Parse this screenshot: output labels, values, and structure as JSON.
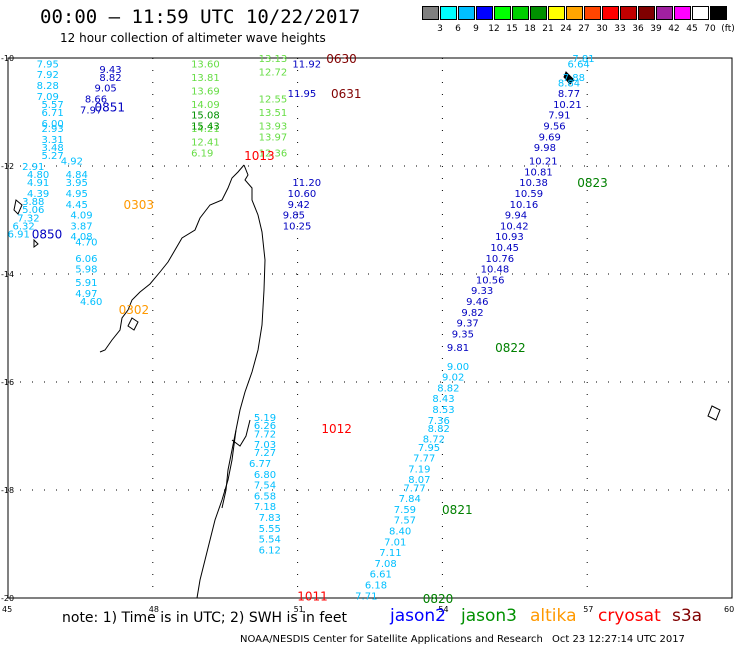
{
  "title": "00:00 – 11:59 UTC 10/22/2017",
  "subtitle": "12 hour collection of altimeter wave heights",
  "colorbar": {
    "colors": [
      "#808080",
      "#00ffff",
      "#00bfff",
      "#0000ff",
      "#00ff00",
      "#00d000",
      "#009000",
      "#ffff00",
      "#ffa500",
      "#ff4500",
      "#ff0000",
      "#c00000",
      "#800000",
      "#a020a0",
      "#ff00ff",
      "#ffffff",
      "#000000"
    ],
    "labels": [
      "3",
      "6",
      "9",
      "12",
      "15",
      "18",
      "21",
      "24",
      "27",
      "30",
      "33",
      "36",
      "39",
      "42",
      "45",
      "70",
      "(ft)"
    ]
  },
  "axes": {
    "lon_ticks": [
      "45",
      "48",
      "51",
      "54",
      "57",
      "60"
    ],
    "lat_ticks": [
      "-10",
      "-12",
      "-14",
      "-16",
      "-18",
      "-20"
    ]
  },
  "tracks": [
    {
      "sat": "jason2",
      "color": "#00bfff",
      "points": [
        {
          "lat": -10.1,
          "lon": 45.8,
          "v": "7.95"
        },
        {
          "lat": -10.3,
          "lon": 45.8,
          "v": "7.92"
        },
        {
          "lat": -10.5,
          "lon": 45.8,
          "v": "8.28"
        },
        {
          "lat": -10.7,
          "lon": 45.8,
          "v": "7.09"
        },
        {
          "lat": -10.85,
          "lon": 45.9,
          "v": "5.57"
        },
        {
          "lat": -11.0,
          "lon": 45.9,
          "v": "6.71"
        },
        {
          "lat": -11.2,
          "lon": 45.9,
          "v": "6.00"
        },
        {
          "lat": -11.3,
          "lon": 45.9,
          "v": "2.93"
        },
        {
          "lat": -11.5,
          "lon": 45.9,
          "v": "3.31"
        },
        {
          "lat": -11.65,
          "lon": 45.9,
          "v": "3.48"
        },
        {
          "lat": -11.8,
          "lon": 45.9,
          "v": "5.27"
        },
        {
          "lat": -11.9,
          "lon": 46.3,
          "v": "4.92"
        },
        {
          "lat": -12.0,
          "lon": 45.5,
          "v": "2.91"
        },
        {
          "lat": -12.15,
          "lon": 45.6,
          "v": "4.80"
        },
        {
          "lat": -12.3,
          "lon": 45.6,
          "v": "4.91"
        },
        {
          "lat": -12.5,
          "lon": 45.6,
          "v": "4.39"
        },
        {
          "lat": -12.65,
          "lon": 45.5,
          "v": "3.88"
        },
        {
          "lat": -12.8,
          "lon": 45.5,
          "v": "5.06"
        },
        {
          "lat": -12.95,
          "lon": 45.4,
          "v": "7.32"
        },
        {
          "lat": -13.1,
          "lon": 45.3,
          "v": "6.32"
        },
        {
          "lat": -13.25,
          "lon": 45.2,
          "v": "6.91"
        },
        {
          "lat": -12.15,
          "lon": 46.4,
          "v": "4.84"
        },
        {
          "lat": -12.3,
          "lon": 46.4,
          "v": "3.95"
        },
        {
          "lat": -12.5,
          "lon": 46.4,
          "v": "4.95"
        },
        {
          "lat": -12.7,
          "lon": 46.4,
          "v": "4.45"
        },
        {
          "lat": -12.9,
          "lon": 46.5,
          "v": "4.09"
        },
        {
          "lat": -13.1,
          "lon": 46.5,
          "v": "3.87"
        },
        {
          "lat": -13.3,
          "lon": 46.5,
          "v": "4.08"
        },
        {
          "lat": -13.4,
          "lon": 46.6,
          "v": "4.70"
        },
        {
          "lat": -13.7,
          "lon": 46.6,
          "v": "6.06"
        },
        {
          "lat": -13.9,
          "lon": 46.6,
          "v": "5.98"
        },
        {
          "lat": -14.15,
          "lon": 46.6,
          "v": "5.91"
        },
        {
          "lat": -14.35,
          "lon": 46.6,
          "v": "4.97"
        },
        {
          "lat": -14.5,
          "lon": 46.7,
          "v": "4.60"
        },
        {
          "lat": -16.65,
          "lon": 50.3,
          "v": "5.19"
        },
        {
          "lat": -16.8,
          "lon": 50.3,
          "v": "6.26"
        },
        {
          "lat": -16.95,
          "lon": 50.3,
          "v": "7.72"
        },
        {
          "lat": -17.15,
          "lon": 50.3,
          "v": "7.03"
        },
        {
          "lat": -17.3,
          "lon": 50.3,
          "v": "7.27"
        },
        {
          "lat": -17.5,
          "lon": 50.2,
          "v": "6.77"
        },
        {
          "lat": -17.7,
          "lon": 50.3,
          "v": "6.80"
        },
        {
          "lat": -17.9,
          "lon": 50.3,
          "v": "7.54"
        },
        {
          "lat": -18.1,
          "lon": 50.3,
          "v": "6.58"
        },
        {
          "lat": -18.3,
          "lon": 50.3,
          "v": "7.18"
        },
        {
          "lat": -18.5,
          "lon": 50.4,
          "v": "7.83"
        },
        {
          "lat": -18.7,
          "lon": 50.4,
          "v": "5.55"
        },
        {
          "lat": -18.9,
          "lon": 50.4,
          "v": "5.54"
        },
        {
          "lat": -19.1,
          "lon": 50.4,
          "v": "6.12"
        },
        {
          "lat": -10.0,
          "lon": 56.9,
          "v": "7.81"
        },
        {
          "lat": -10.1,
          "lon": 56.8,
          "v": "6.64"
        },
        {
          "lat": -10.35,
          "lon": 56.7,
          "v": "7.88"
        },
        {
          "lat": -10.45,
          "lon": 56.6,
          "v": "8.84"
        },
        {
          "lat": -15.7,
          "lon": 54.3,
          "v": "9.00"
        },
        {
          "lat": -15.9,
          "lon": 54.2,
          "v": "9.02"
        },
        {
          "lat": -16.1,
          "lon": 54.1,
          "v": "8.82"
        },
        {
          "lat": -16.3,
          "lon": 54.0,
          "v": "8.43"
        },
        {
          "lat": -16.5,
          "lon": 54.0,
          "v": "8.53"
        },
        {
          "lat": -16.7,
          "lon": 53.9,
          "v": "7.36"
        },
        {
          "lat": -16.85,
          "lon": 53.9,
          "v": "8.82"
        },
        {
          "lat": -17.05,
          "lon": 53.8,
          "v": "8.72"
        },
        {
          "lat": -17.2,
          "lon": 53.7,
          "v": "7.95"
        },
        {
          "lat": -17.4,
          "lon": 53.6,
          "v": "7.77"
        },
        {
          "lat": -17.6,
          "lon": 53.5,
          "v": "7.19"
        },
        {
          "lat": -17.8,
          "lon": 53.5,
          "v": "8.07"
        },
        {
          "lat": -17.95,
          "lon": 53.4,
          "v": "7.77"
        },
        {
          "lat": -18.15,
          "lon": 53.3,
          "v": "7.84"
        },
        {
          "lat": -18.35,
          "lon": 53.2,
          "v": "7.59"
        },
        {
          "lat": -18.55,
          "lon": 53.2,
          "v": "7.57"
        },
        {
          "lat": -18.75,
          "lon": 53.1,
          "v": "8.40"
        },
        {
          "lat": -18.95,
          "lon": 53.0,
          "v": "7.01"
        },
        {
          "lat": -19.15,
          "lon": 52.9,
          "v": "7.11"
        },
        {
          "lat": -19.35,
          "lon": 52.8,
          "v": "7.08"
        },
        {
          "lat": -19.55,
          "lon": 52.7,
          "v": "6.61"
        },
        {
          "lat": -19.75,
          "lon": 52.6,
          "v": "6.18"
        },
        {
          "lat": -19.95,
          "lon": 52.4,
          "v": "7.71"
        }
      ]
    },
    {
      "sat": "jason3",
      "color": "#0000c0",
      "points": [
        {
          "lat": -10.2,
          "lon": 47.1,
          "v": "9.43"
        },
        {
          "lat": -10.35,
          "lon": 47.1,
          "v": "8.82"
        },
        {
          "lat": -10.55,
          "lon": 47.0,
          "v": "9.05"
        },
        {
          "lat": -10.75,
          "lon": 46.8,
          "v": "8.66"
        },
        {
          "lat": -10.95,
          "lon": 46.7,
          "v": "7.97"
        },
        {
          "lat": -10.1,
          "lon": 51.1,
          "v": "11.92"
        },
        {
          "lat": -10.65,
          "lon": 51.0,
          "v": "11.95"
        },
        {
          "lat": -12.3,
          "lon": 51.1,
          "v": "11.20"
        },
        {
          "lat": -12.5,
          "lon": 51.0,
          "v": "10.60"
        },
        {
          "lat": -12.7,
          "lon": 51.0,
          "v": "9.42"
        },
        {
          "lat": -12.9,
          "lon": 50.9,
          "v": "9.85"
        },
        {
          "lat": -13.1,
          "lon": 50.9,
          "v": "10.25"
        },
        {
          "lat": -10.65,
          "lon": 56.6,
          "v": "8.77"
        },
        {
          "lat": -10.85,
          "lon": 56.5,
          "v": "10.21"
        },
        {
          "lat": -11.05,
          "lon": 56.4,
          "v": "7.91"
        },
        {
          "lat": -11.25,
          "lon": 56.3,
          "v": "9.56"
        },
        {
          "lat": -11.45,
          "lon": 56.2,
          "v": "9.69"
        },
        {
          "lat": -11.65,
          "lon": 56.1,
          "v": "9.98"
        },
        {
          "lat": -11.9,
          "lon": 56.0,
          "v": "10.21"
        },
        {
          "lat": -12.1,
          "lon": 55.9,
          "v": "10.81"
        },
        {
          "lat": -12.3,
          "lon": 55.8,
          "v": "10.38"
        },
        {
          "lat": -12.5,
          "lon": 55.7,
          "v": "10.59"
        },
        {
          "lat": -12.7,
          "lon": 55.6,
          "v": "10.16"
        },
        {
          "lat": -12.9,
          "lon": 55.5,
          "v": "9.94"
        },
        {
          "lat": -13.1,
          "lon": 55.4,
          "v": "10.42"
        },
        {
          "lat": -13.3,
          "lon": 55.3,
          "v": "10.93"
        },
        {
          "lat": -13.5,
          "lon": 55.2,
          "v": "10.45"
        },
        {
          "lat": -13.7,
          "lon": 55.1,
          "v": "10.76"
        },
        {
          "lat": -13.9,
          "lon": 55.0,
          "v": "10.48"
        },
        {
          "lat": -14.1,
          "lon": 54.9,
          "v": "10.56"
        },
        {
          "lat": -14.3,
          "lon": 54.8,
          "v": "9.33"
        },
        {
          "lat": -14.5,
          "lon": 54.7,
          "v": "9.46"
        },
        {
          "lat": -14.7,
          "lon": 54.6,
          "v": "9.82"
        },
        {
          "lat": -14.9,
          "lon": 54.5,
          "v": "9.37"
        },
        {
          "lat": -15.1,
          "lon": 54.4,
          "v": "9.35"
        },
        {
          "lat": -15.35,
          "lon": 54.3,
          "v": "9.81"
        }
      ]
    },
    {
      "sat": "jason3-green",
      "color": "#66dd44",
      "points": [
        {
          "lat": -10.0,
          "lon": 50.4,
          "v": "13.13"
        },
        {
          "lat": -10.25,
          "lon": 50.4,
          "v": "12.72"
        },
        {
          "lat": -10.75,
          "lon": 50.4,
          "v": "12.55"
        },
        {
          "lat": -11.0,
          "lon": 50.4,
          "v": "13.51"
        },
        {
          "lat": -11.25,
          "lon": 50.4,
          "v": "13.93"
        },
        {
          "lat": -11.45,
          "lon": 50.4,
          "v": "13.97"
        },
        {
          "lat": -11.75,
          "lon": 50.4,
          "v": "12.36"
        },
        {
          "lat": -10.1,
          "lon": 49.0,
          "v": "13.60"
        },
        {
          "lat": -10.35,
          "lon": 49.0,
          "v": "13.81"
        },
        {
          "lat": -10.6,
          "lon": 49.0,
          "v": "13.69"
        },
        {
          "lat": -10.85,
          "lon": 49.0,
          "v": "14.09"
        },
        {
          "lat": -11.3,
          "lon": 49.0,
          "v": "14.21"
        },
        {
          "lat": -11.55,
          "lon": 49.0,
          "v": "12.41"
        },
        {
          "lat": -11.75,
          "lon": 49.0,
          "v": "6.19"
        }
      ]
    },
    {
      "sat": "jason3-darkgreen",
      "color": "#009000",
      "points": [
        {
          "lat": -11.05,
          "lon": 49.0,
          "v": "15.08"
        },
        {
          "lat": -11.25,
          "lon": 49.0,
          "v": "15.43"
        }
      ]
    }
  ],
  "time_labels": [
    {
      "text": "0851",
      "lat": -10.9,
      "lon": 47.0,
      "color": "#0000c0"
    },
    {
      "text": "0850",
      "lat": -13.25,
      "lon": 45.7,
      "color": "#0000c0"
    },
    {
      "text": "0303",
      "lat": -12.7,
      "lon": 47.6,
      "color": "#ff9900"
    },
    {
      "text": "0302",
      "lat": -14.65,
      "lon": 47.5,
      "color": "#ff9900"
    },
    {
      "text": "0630",
      "lat": -10.0,
      "lon": 51.8,
      "color": "#800000"
    },
    {
      "text": "0631",
      "lat": -10.65,
      "lon": 51.9,
      "color": "#800000"
    },
    {
      "text": "1013",
      "lat": -11.8,
      "lon": 50.1,
      "color": "#ff0000"
    },
    {
      "text": "1012",
      "lat": -16.85,
      "lon": 51.7,
      "color": "#ff0000"
    },
    {
      "text": "1011",
      "lat": -19.95,
      "lon": 51.2,
      "color": "#ff0000"
    },
    {
      "text": "0823",
      "lat": -12.3,
      "lon": 57.0,
      "color": "#008000"
    },
    {
      "text": "0822",
      "lat": -15.35,
      "lon": 55.3,
      "color": "#008000"
    },
    {
      "text": "0821",
      "lat": -18.35,
      "lon": 54.2,
      "color": "#008000"
    },
    {
      "text": "0820",
      "lat": -20.0,
      "lon": 53.8,
      "color": "#008000"
    }
  ],
  "note": "note:  1) Time is in UTC;  2) SWH is in feet",
  "legend": [
    {
      "name": "jason2",
      "color": "#0000ff"
    },
    {
      "name": "jason3",
      "color": "#009000"
    },
    {
      "name": "altika",
      "color": "#ff9900"
    },
    {
      "name": "cryosat",
      "color": "#ff0000"
    },
    {
      "name": "s3a",
      "color": "#800000"
    }
  ],
  "footer_left": "NOAA/NESDIS Center for Satellite Applications and Research",
  "footer_right": "Oct 23 12:27:14 UTC 2017"
}
